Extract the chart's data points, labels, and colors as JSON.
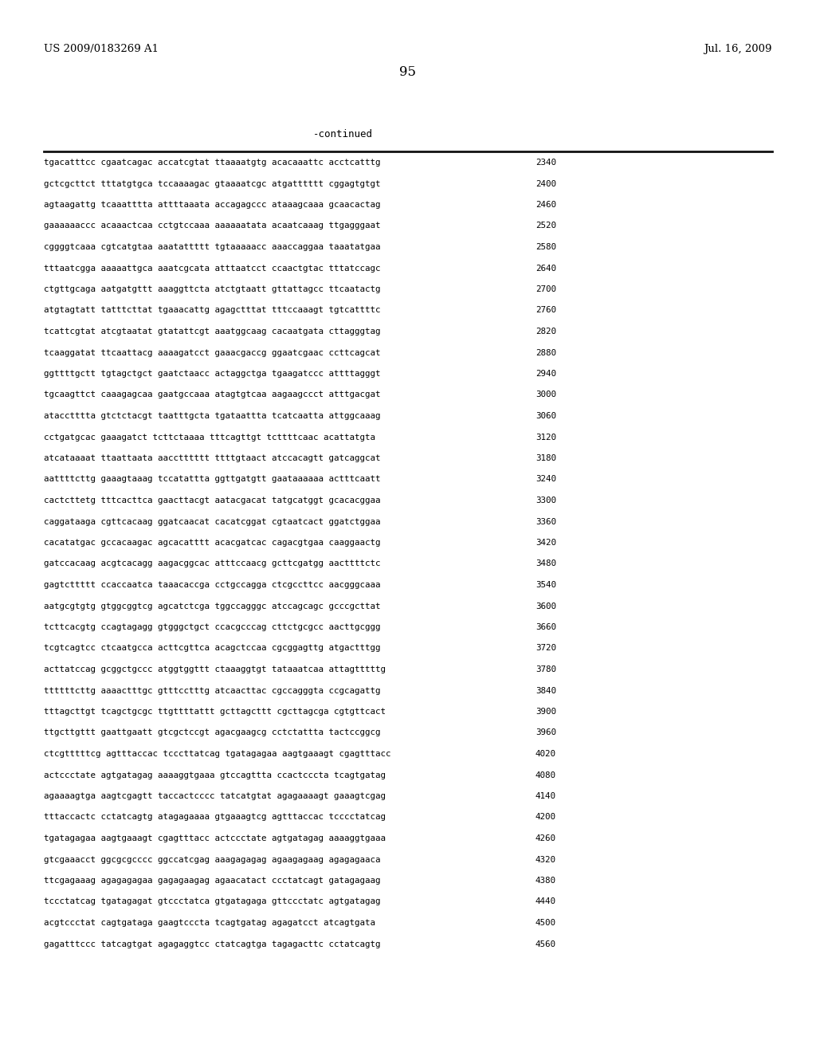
{
  "header_left": "US 2009/0183269 A1",
  "header_right": "Jul. 16, 2009",
  "page_number": "95",
  "continued_label": "-continued",
  "background_color": "#ffffff",
  "text_color": "#000000",
  "seq_font_size": 7.8,
  "header_font_size": 9.5,
  "page_num_font_size": 12,
  "continued_font_size": 9,
  "sequences": [
    [
      "tgacatttcc cgaatcagac accatcgtat ttaaaatgtg acacaaattc acctcatttg",
      "2340"
    ],
    [
      "gctcgcttct tttatgtgca tccaaaagac gtaaaatcgc atgatttttt cggagtgtgt",
      "2400"
    ],
    [
      "agtaagattg tcaaatttta attttaaata accagagccc ataaagcaaa gcaacactag",
      "2460"
    ],
    [
      "gaaaaaaccc acaaactcaa cctgtccaaa aaaaaatata acaatcaaag ttgagggaat",
      "2520"
    ],
    [
      "cggggtcaaa cgtcatgtaa aaatattttt tgtaaaaacc aaaccaggaa taaatatgaa",
      "2580"
    ],
    [
      "tttaatcgga aaaaattgca aaatcgcata atttaatcct ccaactgtac tttatccagc",
      "2640"
    ],
    [
      "ctgttgcaga aatgatgttt aaaggttcta atctgtaatt gttattagcc ttcaatactg",
      "2700"
    ],
    [
      "atgtagtatt tatttcttat tgaaacattg agagctttat tttccaaagt tgtcattttc",
      "2760"
    ],
    [
      "tcattcgtat atcgtaatat gtatattcgt aaatggcaag cacaatgata cttagggtag",
      "2820"
    ],
    [
      "tcaaggatat ttcaattacg aaaagatcct gaaacgaccg ggaatcgaac ccttcagcat",
      "2880"
    ],
    [
      "ggttttgctt tgtagctgct gaatctaacc actaggctga tgaagatccc attttagggt",
      "2940"
    ],
    [
      "tgcaagttct caaagagcaa gaatgccaaa atagtgtcaa aagaagccct atttgacgat",
      "3000"
    ],
    [
      "atacctttta gtctctacgt taatttgcta tgataattta tcatcaatta attggcaaag",
      "3060"
    ],
    [
      "cctgatgcac gaaagatct tcttctaaaa tttcagttgt tcttttcaac acattatgta",
      "3120"
    ],
    [
      "atcataaaat ttaattaata aacctttttt ttttgtaact atccacagtt gatcaggcat",
      "3180"
    ],
    [
      "aattttcttg gaaagtaaag tccatattta ggttgatgtt gaataaaaaa actttcaatt",
      "3240"
    ],
    [
      "cactcttetg tttcacttca gaacttacgt aatacgacat tatgcatggt gcacacggaa",
      "3300"
    ],
    [
      "caggataaga cgttcacaag ggatcaacat cacatcggat cgtaatcact ggatctggaa",
      "3360"
    ],
    [
      "cacatatgac gccacaagac agcacatttt acacgatcac cagacgtgaa caaggaactg",
      "3420"
    ],
    [
      "gatccacaag acgtcacagg aagacggcac atttccaacg gcttcgatgg aacttttctc",
      "3480"
    ],
    [
      "gagtcttttt ccaccaatca taaacaccga cctgccagga ctcgccttcc aacgggcaaa",
      "3540"
    ],
    [
      "aatgcgtgtg gtggcggtcg agcatctcga tggccagggc atccagcagc gcccgcttat",
      "3600"
    ],
    [
      "tcttcacgtg ccagtagagg gtgggctgct ccacgcccag cttctgcgcc aacttgcggg",
      "3660"
    ],
    [
      "tcgtcagtcc ctcaatgcca acttcgttca acagctccaa cgcggagttg atgactttgg",
      "3720"
    ],
    [
      "acttatccag gcggctgccc atggtggttt ctaaaggtgt tataaatcaa attagtttttg",
      "3780"
    ],
    [
      "ttttttcttg aaaactttgc gtttcctttg atcaacttac cgccagggta ccgcagattg",
      "3840"
    ],
    [
      "tttagcttgt tcagctgcgc ttgttttattt gcttagcttt cgcttagcga cgtgttcact",
      "3900"
    ],
    [
      "ttgcttgttt gaattgaatt gtcgctccgt agacgaagcg cctctattta tactccggcg",
      "3960"
    ],
    [
      "ctcgtttttcg agtttaccac tcccttatcag tgatagagaa aagtgaaagt cgagtttacc",
      "4020"
    ],
    [
      "actccctate agtgatagag aaaaggtgaaa gtccagttta ccactcccta tcagtgatag",
      "4080"
    ],
    [
      "agaaaagtga aagtcgagtt taccactcccc tatcatgtat agagaaaagt gaaagtcgag",
      "4140"
    ],
    [
      "tttaccactc cctatcagtg atagagaaaa gtgaaagtcg agtttaccac tcccctatcag",
      "4200"
    ],
    [
      "tgatagagaa aagtgaaagt cgagtttacc actccctate agtgatagag aaaaggtgaaa",
      "4260"
    ],
    [
      "gtcgaaacct ggcgcgcccc ggccatcgag aaagagagag agaagagaag agagagaaca",
      "4320"
    ],
    [
      "ttcgagaaag agagagagaa gagagaagag agaacatact ccctatcagt gatagagaag",
      "4380"
    ],
    [
      "tccctatcag tgatagagat gtccctatca gtgatagaga gttccctatc agtgatagag",
      "4440"
    ],
    [
      "acgtccctat cagtgataga gaagtcccta tcagtgatag agagatcct atcagtgata",
      "4500"
    ],
    [
      "gagatttccc tatcagtgat agagaggtcc ctatcagtga tagagacttc cctatcagtg",
      "4560"
    ]
  ]
}
